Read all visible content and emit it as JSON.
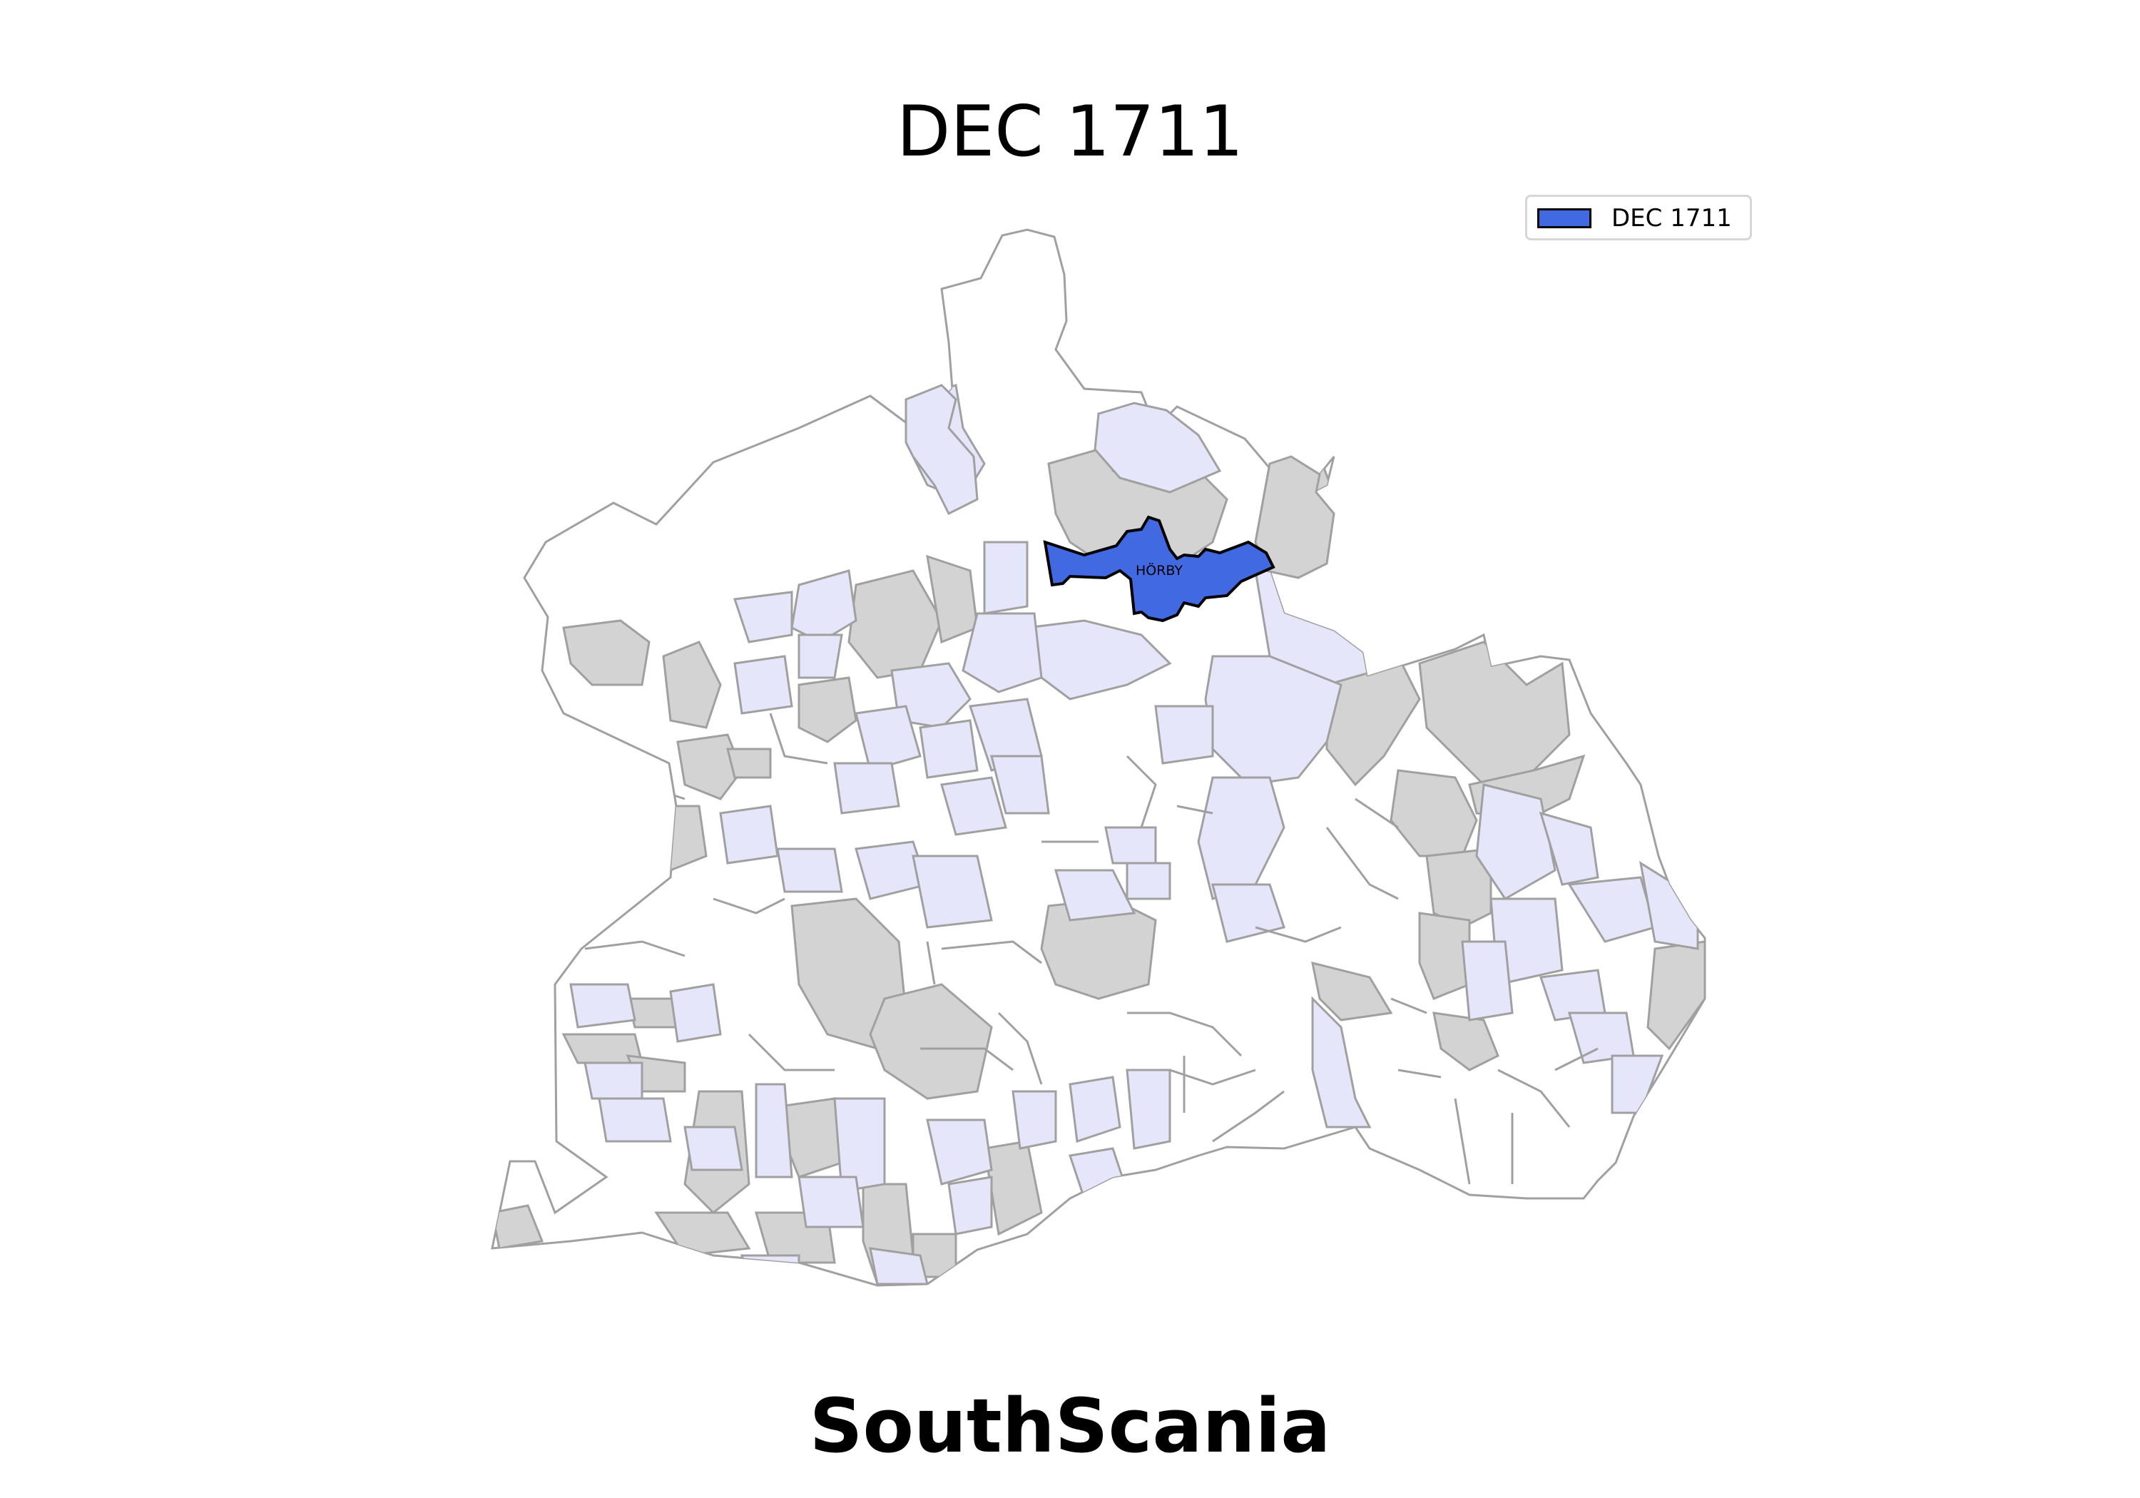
{
  "map": {
    "title": "DEC 1711",
    "subtitle": "SouthScania",
    "highlighted_parish": {
      "label": "HÖRBY",
      "fill": "#4169e1"
    },
    "legend": {
      "entries": [
        {
          "label": "DEC 1711",
          "color": "#4169e1"
        }
      ]
    },
    "colors": {
      "highlight": "#4169e1",
      "category_lavender": "#e6e6fa",
      "category_gray": "#d3d3d3",
      "category_white": "#ffffff",
      "border": "#a0a0a0",
      "highlight_border": "#000000"
    }
  }
}
